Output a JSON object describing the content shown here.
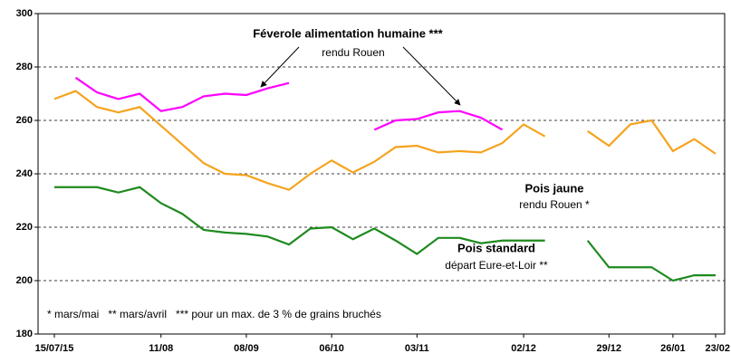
{
  "chart_data": {
    "type": "line",
    "categories": [
      "15/07/15",
      null,
      null,
      null,
      null,
      "11/08",
      null,
      null,
      null,
      "08/09",
      null,
      null,
      null,
      "06/10",
      null,
      null,
      null,
      "03/11",
      null,
      null,
      null,
      null,
      "02/12",
      null,
      null,
      null,
      "29/12",
      null,
      null,
      "26/01",
      null,
      "23/02"
    ],
    "series": [
      {
        "name": "Féverole alimentation humaine ***",
        "color": "#ff00ff",
        "values": [
          null,
          276,
          270.5,
          268,
          270,
          263.5,
          265,
          269,
          270,
          269.5,
          272,
          274,
          null,
          null,
          null,
          256.5,
          260,
          260.5,
          263,
          263.5,
          261,
          256.5,
          null,
          null,
          null,
          null,
          null,
          null,
          null,
          null,
          null,
          null
        ]
      },
      {
        "name": "Pois jaune",
        "color": "#f5a31e",
        "values": [
          268,
          271,
          265,
          263,
          265,
          258,
          251,
          244,
          240,
          239.5,
          236.5,
          234,
          240,
          245,
          240.5,
          244.5,
          250,
          250.5,
          248,
          248.5,
          248,
          251.5,
          258.5,
          254,
          null,
          256,
          250.5,
          258.5,
          260,
          248.5,
          253,
          247.5
        ]
      },
      {
        "name": "Pois standard",
        "color": "#1e8a1e",
        "values": [
          235,
          235,
          235,
          233,
          235,
          229,
          225,
          219,
          218,
          217.5,
          216.5,
          213.5,
          219.5,
          220,
          215.5,
          219.5,
          215,
          210,
          216,
          216,
          214,
          215,
          215,
          215,
          null,
          215,
          205,
          205,
          205,
          200,
          202,
          202
        ]
      }
    ],
    "annotations": [
      "rendu Rouen",
      "rendu Rouen *",
      "départ Eure-et-Loir **",
      "* mars/mai   ** mars/avril   *** pour un max. de 3 % de grains bruchés"
    ],
    "ylim": [
      180,
      300
    ],
    "yticks": [
      180,
      200,
      220,
      240,
      260,
      280,
      300
    ],
    "grid": true
  }
}
